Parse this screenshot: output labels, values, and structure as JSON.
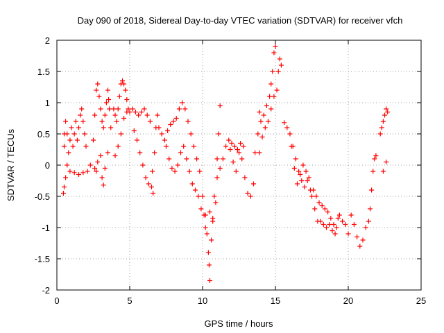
{
  "chart_data": {
    "type": "scatter",
    "title": "Day 090 of 2018, Sidereal Day-to-day VTEC variation (SDTVAR) for receiver vfch",
    "xlabel": "GPS time / hours",
    "ylabel": "SDTVAR / TECUs",
    "xlim": [
      0,
      25
    ],
    "ylim": [
      -2,
      2
    ],
    "x_ticks": [
      0,
      5,
      10,
      15,
      20,
      25
    ],
    "x_tick_labels": [
      "0",
      "5",
      "10",
      "15",
      "20",
      "25"
    ],
    "y_ticks": [
      -2,
      -1.5,
      -1,
      -0.5,
      0,
      0.5,
      1,
      1.5,
      2
    ],
    "y_tick_labels": [
      "-2",
      "-1.5",
      "-1",
      "-0.5",
      "0",
      "0.5",
      "1",
      "1.5",
      "2"
    ],
    "grid": true,
    "marker": "+",
    "color": "#ff0000",
    "series": [
      {
        "name": "vfch",
        "points": [
          [
            0.45,
            -0.45
          ],
          [
            0.5,
            -0.35
          ],
          [
            0.6,
            -0.2
          ],
          [
            0.5,
            0.3
          ],
          [
            0.5,
            0.5
          ],
          [
            0.6,
            0.7
          ],
          [
            0.7,
            0.5
          ],
          [
            0.8,
            0.2
          ],
          [
            0.9,
            0.4
          ],
          [
            1.0,
            0.6
          ],
          [
            1.1,
            0.3
          ],
          [
            1.2,
            0.5
          ],
          [
            1.3,
            0.7
          ],
          [
            1.4,
            0.4
          ],
          [
            1.5,
            0.6
          ],
          [
            1.6,
            0.8
          ],
          [
            1.7,
            0.9
          ],
          [
            1.8,
            0.7
          ],
          [
            1.9,
            0.5
          ],
          [
            2.0,
            0.3
          ],
          [
            0.7,
            0.0
          ],
          [
            0.9,
            -0.1
          ],
          [
            1.2,
            -0.12
          ],
          [
            1.5,
            -0.15
          ],
          [
            1.8,
            -0.12
          ],
          [
            2.1,
            -0.1
          ],
          [
            2.3,
            0.0
          ],
          [
            2.5,
            0.4
          ],
          [
            2.6,
            0.8
          ],
          [
            2.7,
            1.2
          ],
          [
            2.8,
            1.3
          ],
          [
            2.9,
            1.1
          ],
          [
            3.0,
            0.9
          ],
          [
            3.1,
            0.7
          ],
          [
            3.2,
            0.6
          ],
          [
            3.3,
            0.8
          ],
          [
            3.4,
            1.0
          ],
          [
            3.5,
            1.2
          ],
          [
            3.55,
            1.05
          ],
          [
            3.6,
            0.9
          ],
          [
            2.6,
            -0.05
          ],
          [
            2.7,
            -0.1
          ],
          [
            2.8,
            0.05
          ],
          [
            3.0,
            0.15
          ],
          [
            3.1,
            -0.2
          ],
          [
            3.2,
            -0.32
          ],
          [
            3.3,
            -0.05
          ],
          [
            3.5,
            0.2
          ],
          [
            3.7,
            0.6
          ],
          [
            3.9,
            0.9
          ],
          [
            4.0,
            0.8
          ],
          [
            4.1,
            0.7
          ],
          [
            4.2,
            0.9
          ],
          [
            4.3,
            1.1
          ],
          [
            4.4,
            1.3
          ],
          [
            4.5,
            1.35
          ],
          [
            4.6,
            1.3
          ],
          [
            4.7,
            1.2
          ],
          [
            4.8,
            1.05
          ],
          [
            4.9,
            0.9
          ],
          [
            4.0,
            0.15
          ],
          [
            4.2,
            0.3
          ],
          [
            4.4,
            0.5
          ],
          [
            4.6,
            0.75
          ],
          [
            4.8,
            0.85
          ],
          [
            5.0,
            0.85
          ],
          [
            5.2,
            0.9
          ],
          [
            5.4,
            0.85
          ],
          [
            5.6,
            0.8
          ],
          [
            5.8,
            0.85
          ],
          [
            6.0,
            0.9
          ],
          [
            6.2,
            0.8
          ],
          [
            6.4,
            0.7
          ],
          [
            5.3,
            0.55
          ],
          [
            5.5,
            0.4
          ],
          [
            5.7,
            0.2
          ],
          [
            5.9,
            0.0
          ],
          [
            6.1,
            -0.2
          ],
          [
            6.3,
            -0.3
          ],
          [
            6.5,
            -0.35
          ],
          [
            6.6,
            -0.45
          ],
          [
            6.55,
            -0.1
          ],
          [
            6.7,
            0.2
          ],
          [
            6.8,
            0.6
          ],
          [
            6.9,
            0.8
          ],
          [
            7.0,
            0.6
          ],
          [
            7.2,
            0.5
          ],
          [
            7.4,
            0.4
          ],
          [
            7.6,
            0.55
          ],
          [
            7.8,
            0.65
          ],
          [
            8.0,
            0.7
          ],
          [
            8.2,
            0.75
          ],
          [
            8.4,
            0.9
          ],
          [
            8.6,
            1.0
          ],
          [
            8.8,
            0.9
          ],
          [
            9.0,
            0.7
          ],
          [
            9.2,
            0.5
          ],
          [
            9.4,
            0.3
          ],
          [
            9.6,
            0.1
          ],
          [
            9.8,
            -0.1
          ],
          [
            10.0,
            -0.5
          ],
          [
            10.1,
            -0.8
          ],
          [
            10.2,
            -1.0
          ],
          [
            10.3,
            -1.1
          ],
          [
            10.4,
            -1.4
          ],
          [
            10.45,
            -1.6
          ],
          [
            10.5,
            -1.85
          ],
          [
            10.6,
            -1.2
          ],
          [
            10.7,
            -0.9
          ],
          [
            10.8,
            -0.5
          ],
          [
            7.5,
            0.3
          ],
          [
            7.7,
            0.1
          ],
          [
            7.9,
            -0.05
          ],
          [
            8.1,
            -0.1
          ],
          [
            8.3,
            0.0
          ],
          [
            8.5,
            0.2
          ],
          [
            8.7,
            0.3
          ],
          [
            8.9,
            0.1
          ],
          [
            9.1,
            -0.1
          ],
          [
            9.3,
            -0.3
          ],
          [
            9.5,
            -0.4
          ],
          [
            9.7,
            -0.5
          ],
          [
            9.9,
            -0.7
          ],
          [
            10.2,
            -0.8
          ],
          [
            10.5,
            -0.75
          ],
          [
            10.7,
            -0.85
          ],
          [
            10.9,
            -0.6
          ],
          [
            11.0,
            -0.2
          ],
          [
            11.1,
            0.5
          ],
          [
            11.2,
            0.95
          ],
          [
            11.0,
            0.1
          ],
          [
            11.2,
            -0.05
          ],
          [
            11.4,
            0.1
          ],
          [
            11.6,
            0.3
          ],
          [
            11.8,
            0.4
          ],
          [
            12.0,
            0.35
          ],
          [
            12.2,
            0.3
          ],
          [
            12.4,
            0.25
          ],
          [
            12.6,
            0.35
          ],
          [
            12.8,
            0.3
          ],
          [
            11.9,
            0.25
          ],
          [
            12.1,
            0.05
          ],
          [
            12.3,
            -0.1
          ],
          [
            12.5,
            0.2
          ],
          [
            12.7,
            0.1
          ],
          [
            12.9,
            -0.2
          ],
          [
            13.1,
            -0.45
          ],
          [
            13.3,
            -0.5
          ],
          [
            13.5,
            -0.3
          ],
          [
            13.6,
            0.2
          ],
          [
            13.8,
            0.5
          ],
          [
            13.9,
            0.85
          ],
          [
            14.0,
            0.7
          ],
          [
            14.2,
            0.8
          ],
          [
            14.4,
            0.95
          ],
          [
            14.6,
            1.1
          ],
          [
            14.7,
            1.3
          ],
          [
            14.8,
            1.5
          ],
          [
            14.9,
            1.8
          ],
          [
            15.0,
            1.9
          ],
          [
            13.9,
            0.2
          ],
          [
            14.1,
            0.45
          ],
          [
            14.3,
            0.6
          ],
          [
            14.5,
            0.7
          ],
          [
            14.7,
            0.9
          ],
          [
            14.9,
            1.1
          ],
          [
            15.1,
            1.2
          ],
          [
            15.2,
            1.5
          ],
          [
            15.3,
            1.7
          ],
          [
            15.4,
            1.6
          ],
          [
            15.6,
            0.68
          ],
          [
            15.8,
            0.6
          ],
          [
            16.0,
            0.5
          ],
          [
            16.2,
            0.3
          ],
          [
            16.4,
            0.1
          ],
          [
            16.6,
            -0.1
          ],
          [
            16.8,
            -0.25
          ],
          [
            17.0,
            -0.35
          ],
          [
            17.2,
            -0.25
          ],
          [
            17.4,
            -0.4
          ],
          [
            16.1,
            0.3
          ],
          [
            16.3,
            -0.05
          ],
          [
            16.5,
            -0.3
          ],
          [
            16.7,
            -0.15
          ],
          [
            16.9,
            0.0
          ],
          [
            17.1,
            -0.1
          ],
          [
            17.3,
            -0.2
          ],
          [
            17.5,
            -0.5
          ],
          [
            17.7,
            -0.7
          ],
          [
            17.9,
            -0.9
          ],
          [
            17.6,
            -0.4
          ],
          [
            17.8,
            -0.5
          ],
          [
            18.0,
            -0.6
          ],
          [
            18.2,
            -0.65
          ],
          [
            18.4,
            -0.7
          ],
          [
            18.6,
            -0.75
          ],
          [
            18.8,
            -0.85
          ],
          [
            19.0,
            -0.95
          ],
          [
            19.2,
            -1.0
          ],
          [
            19.4,
            -0.8
          ],
          [
            18.1,
            -0.9
          ],
          [
            18.3,
            -0.95
          ],
          [
            18.5,
            -1.0
          ],
          [
            18.7,
            -0.95
          ],
          [
            18.9,
            -1.05
          ],
          [
            19.1,
            -1.1
          ],
          [
            19.3,
            -0.85
          ],
          [
            19.6,
            -0.9
          ],
          [
            19.8,
            -0.95
          ],
          [
            20.0,
            -1.1
          ],
          [
            20.2,
            -0.8
          ],
          [
            20.4,
            -0.95
          ],
          [
            20.6,
            -1.15
          ],
          [
            20.8,
            -1.3
          ],
          [
            21.0,
            -1.2
          ],
          [
            21.2,
            -1.0
          ],
          [
            21.4,
            -0.9
          ],
          [
            21.5,
            -0.7
          ],
          [
            21.6,
            -0.4
          ],
          [
            21.7,
            -0.1
          ],
          [
            21.8,
            0.1
          ],
          [
            21.9,
            0.15
          ],
          [
            22.2,
            0.5
          ],
          [
            22.3,
            0.6
          ],
          [
            22.4,
            0.7
          ],
          [
            22.5,
            0.8
          ],
          [
            22.6,
            0.9
          ],
          [
            22.7,
            0.85
          ],
          [
            22.4,
            -0.1
          ],
          [
            22.6,
            0.05
          ]
        ]
      }
    ]
  }
}
